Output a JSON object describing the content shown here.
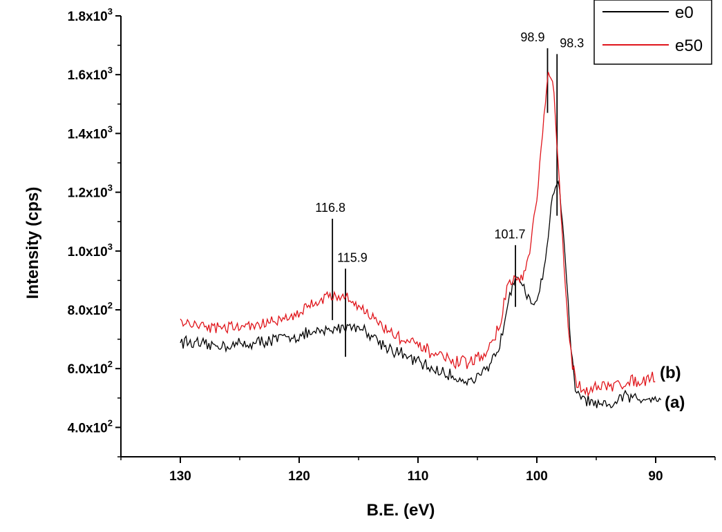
{
  "chart_data": {
    "type": "line",
    "title": "",
    "xlabel": "B.E. (eV)",
    "ylabel": "Intensity (cps)",
    "xlim": [
      135,
      85
    ],
    "ylim": [
      300,
      1800
    ],
    "x_reversed": true,
    "x_ticks": [
      "130",
      "120",
      "110",
      "100",
      "90"
    ],
    "x_tick_values": [
      130,
      120,
      110,
      100,
      90
    ],
    "y_ticks": [
      {
        "mantissa": "4.0x10",
        "exp": "2"
      },
      {
        "mantissa": "6.0x10",
        "exp": "2"
      },
      {
        "mantissa": "8.0x10",
        "exp": "2"
      },
      {
        "mantissa": "1.0x10",
        "exp": "3"
      },
      {
        "mantissa": "1.2x10",
        "exp": "3"
      },
      {
        "mantissa": "1.4x10",
        "exp": "3"
      },
      {
        "mantissa": "1.6x10",
        "exp": "3"
      },
      {
        "mantissa": "1.8x10",
        "exp": "3"
      }
    ],
    "y_tick_values": [
      400,
      600,
      800,
      1000,
      1200,
      1400,
      1600,
      1800
    ],
    "legend_position": "top-right",
    "series": [
      {
        "name": "e0",
        "color": "#000000",
        "trace_label": "(a)",
        "x": [
          130,
          128,
          126,
          124,
          122,
          120,
          118,
          117,
          116,
          115,
          114,
          113,
          112,
          110,
          108,
          106,
          105,
          104,
          103,
          102.5,
          102,
          101.7,
          101.2,
          100.8,
          100.3,
          99.8,
          99.2,
          98.8,
          98.5,
          98.3,
          98.0,
          97.6,
          97.2,
          96.8,
          96.3,
          95.8,
          95.3,
          94.8,
          94.3,
          93.8,
          93.2,
          92.6,
          92.0,
          91.2,
          90.5,
          89.5
        ],
        "y": [
          695,
          678,
          680,
          685,
          700,
          712,
          725,
          735,
          745,
          742,
          718,
          685,
          660,
          622,
          585,
          560,
          565,
          600,
          700,
          820,
          900,
          930,
          880,
          835,
          815,
          860,
          990,
          1145,
          1225,
          1240,
          1175,
          980,
          700,
          530,
          502,
          490,
          482,
          472,
          468,
          475,
          490,
          508,
          500,
          496,
          505,
          500
        ]
      },
      {
        "name": "e50",
        "color": "#e0141a",
        "trace_label": "(b)",
        "x": [
          130,
          128,
          126,
          124,
          122,
          120,
          119,
          118,
          117,
          116,
          115,
          114,
          113,
          112,
          110,
          108,
          107,
          106,
          105,
          104,
          103,
          102.5,
          102,
          101.5,
          101,
          100.5,
          100,
          99.5,
          99.2,
          99.0,
          98.8,
          98.5,
          98.2,
          97.8,
          97.4,
          97.0,
          96.6,
          96.2,
          95.6,
          95.0,
          94.0,
          93.0,
          92.0,
          91.0,
          90.0
        ],
        "y": [
          760,
          745,
          740,
          745,
          760,
          790,
          820,
          840,
          850,
          840,
          815,
          780,
          745,
          715,
          675,
          640,
          620,
          620,
          635,
          665,
          760,
          880,
          900,
          905,
          920,
          1020,
          1180,
          1400,
          1560,
          1600,
          1590,
          1500,
          1300,
          1000,
          760,
          610,
          545,
          530,
          532,
          535,
          540,
          548,
          556,
          562,
          575
        ]
      }
    ],
    "annotations": [
      {
        "text": "116.8",
        "x": 117.2,
        "y_top": 1110,
        "y_bottom": 765
      },
      {
        "text": "115.9",
        "x": 116.1,
        "y_top": 940,
        "y_bottom": 640
      },
      {
        "text": "101.7",
        "x": 101.8,
        "y_top": 1020,
        "y_bottom": 810
      },
      {
        "text": "98.9",
        "x": 99.1,
        "y_top": 1690,
        "y_bottom": 1470
      },
      {
        "text": "98.3",
        "x": 98.3,
        "y_top": 1670,
        "y_bottom": 1120
      }
    ]
  }
}
